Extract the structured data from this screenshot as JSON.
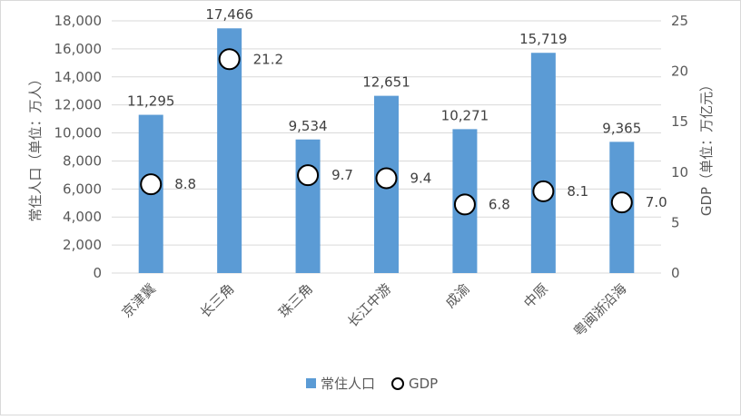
{
  "chart_data": {
    "type": "bar",
    "categories": [
      "京津冀",
      "长三角",
      "珠三角",
      "长江中游",
      "成渝",
      "中原",
      "粤闽浙沿海"
    ],
    "series": [
      {
        "name": "常住人口",
        "chart_type": "bar",
        "axis": "left",
        "values": [
          11295,
          17466,
          9534,
          12651,
          10271,
          15719,
          9365
        ],
        "labels": [
          "11,295",
          "17,466",
          "9,534",
          "12,651",
          "10,271",
          "15,719",
          "9,365"
        ],
        "color": "#5b9bd5"
      },
      {
        "name": "GDP",
        "chart_type": "scatter",
        "axis": "right",
        "values": [
          8.8,
          21.2,
          9.7,
          9.4,
          6.8,
          8.1,
          7.0
        ],
        "labels": [
          "8.8",
          "21.2",
          "9.7",
          "9.4",
          "6.8",
          "8.1",
          "7.0"
        ],
        "marker": "hollow-circle",
        "color": "#000000"
      }
    ],
    "ylabel": "常住人口（单位：万人）",
    "y2label": "GDP（单位：万亿元）",
    "ylim": [
      0,
      18000
    ],
    "y2lim": [
      0,
      25
    ],
    "yticks": [
      "0",
      "2,000",
      "4,000",
      "6,000",
      "8,000",
      "10,000",
      "12,000",
      "14,000",
      "16,000",
      "18,000"
    ],
    "y2ticks": [
      "0",
      "5",
      "10",
      "15",
      "20",
      "25"
    ],
    "grid": true,
    "legend": "bottom",
    "legend_items": [
      "常住人口",
      "GDP"
    ]
  }
}
